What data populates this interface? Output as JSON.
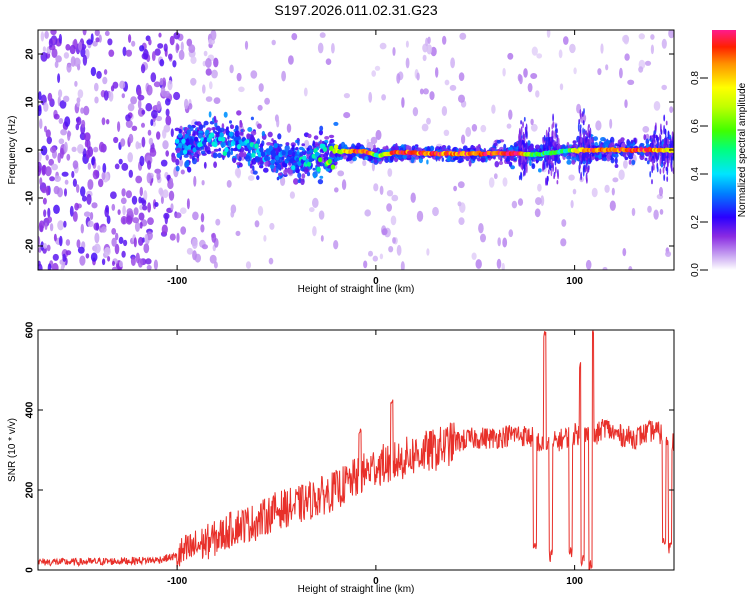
{
  "title": "S197.2026.011.02.31.G23",
  "colors": {
    "snr_line": "#e8302a",
    "points": "#7a1fd6"
  },
  "chart_data": [
    {
      "type": "heatmap",
      "title": "S197.2026.011.02.31.G23",
      "xlabel": "Height of straight line (km)",
      "ylabel": "Frequency (Hz)",
      "xlim": [
        -170,
        150
      ],
      "ylim": [
        -25,
        25
      ],
      "xticks": [
        {
          "v": -100,
          "label": "-100"
        },
        {
          "v": 0,
          "label": "0"
        },
        {
          "v": 100,
          "label": "100"
        }
      ],
      "yticks": [
        {
          "v": -20,
          "label": "-20"
        },
        {
          "v": -10,
          "label": "-10"
        },
        {
          "v": 0,
          "label": "0"
        },
        {
          "v": 10,
          "label": "10"
        },
        {
          "v": 20,
          "label": "20"
        }
      ],
      "colorbar": {
        "label": "Normalized spectral amplitude",
        "range": [
          0,
          1
        ],
        "ticks": [
          {
            "v": 0.0,
            "label": "0.0"
          },
          {
            "v": 0.2,
            "label": "0.2"
          },
          {
            "v": 0.4,
            "label": "0.4"
          },
          {
            "v": 0.6,
            "label": "0.6"
          },
          {
            "v": 0.8,
            "label": "0.8"
          }
        ]
      },
      "ridge": [
        {
          "x": -100,
          "freq": 0.0,
          "amp": 0.3
        },
        {
          "x": -85,
          "freq": 2.5,
          "amp": 0.35
        },
        {
          "x": -70,
          "freq": 1.5,
          "amp": 0.35
        },
        {
          "x": -55,
          "freq": -0.5,
          "amp": 0.35
        },
        {
          "x": -40,
          "freq": -2.0,
          "amp": 0.35
        },
        {
          "x": -30,
          "freq": -1.5,
          "amp": 0.4
        },
        {
          "x": -20,
          "freq": -0.3,
          "amp": 0.7
        },
        {
          "x": -5,
          "freq": -0.3,
          "amp": 0.95
        },
        {
          "x": 0,
          "freq": -1.2,
          "amp": 0.5
        },
        {
          "x": 10,
          "freq": -0.5,
          "amp": 0.9
        },
        {
          "x": 40,
          "freq": -0.8,
          "amp": 0.9
        },
        {
          "x": 70,
          "freq": -0.7,
          "amp": 0.95
        },
        {
          "x": 80,
          "freq": -1.0,
          "amp": 0.55
        },
        {
          "x": 95,
          "freq": -0.2,
          "amp": 0.5
        },
        {
          "x": 105,
          "freq": 0.0,
          "amp": 0.9
        },
        {
          "x": 130,
          "freq": 0.0,
          "amp": 0.95
        },
        {
          "x": 150,
          "freq": 0.0,
          "amp": 0.7
        }
      ]
    },
    {
      "type": "line",
      "xlabel": "Height of straight line (km)",
      "ylabel": "SNR (10 * v/v)",
      "xlim": [
        -170,
        150
      ],
      "ylim": [
        0,
        600
      ],
      "xticks": [
        {
          "v": -100,
          "label": "-100"
        },
        {
          "v": 0,
          "label": "0"
        },
        {
          "v": 100,
          "label": "100"
        }
      ],
      "yticks": [
        {
          "v": 0,
          "label": "0"
        },
        {
          "v": 200,
          "label": "200"
        },
        {
          "v": 400,
          "label": "400"
        },
        {
          "v": 600,
          "label": "600"
        }
      ],
      "series": [
        {
          "name": "SNR",
          "x": [
            -170,
            -150,
            -130,
            -110,
            -100,
            -90,
            -80,
            -70,
            -60,
            -50,
            -40,
            -30,
            -20,
            -10,
            0,
            10,
            20,
            30,
            40,
            50,
            60,
            70,
            80,
            85,
            90,
            95,
            100,
            105,
            110,
            115,
            120,
            130,
            140,
            150
          ],
          "y": [
            20,
            20,
            22,
            25,
            35,
            60,
            80,
            110,
            120,
            150,
            160,
            180,
            200,
            230,
            260,
            270,
            290,
            300,
            320,
            330,
            330,
            340,
            330,
            300,
            320,
            330,
            340,
            340,
            330,
            360,
            340,
            330,
            350,
            320
          ]
        }
      ]
    }
  ]
}
